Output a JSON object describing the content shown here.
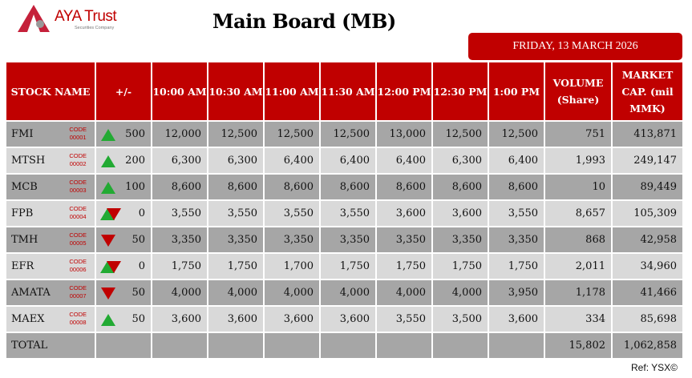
{
  "logo": {
    "name": "AYA Trust",
    "subtitle": "Securities Company"
  },
  "title": "Main Board (MB)",
  "date": "FRIDAY, 13 MARCH 2026",
  "colors": {
    "header": "#c00000",
    "row_dark": "#a6a6a6",
    "row_light": "#d9d9d9",
    "up": "#22aa33",
    "down": "#c00000"
  },
  "columns": [
    "STOCK NAME",
    "+/-",
    "10:00 AM",
    "10:30 AM",
    "11:00 AM",
    "11:30 AM",
    "12:00 PM",
    "12:30 PM",
    "1:00 PM",
    "VOLUME (Share)",
    "MARKET CAP. (mil MMK)"
  ],
  "rows": [
    {
      "name": "FMI",
      "code_label": "CODE",
      "code": "00001",
      "trend": "up",
      "change": "500",
      "prices": [
        "12,000",
        "12,500",
        "12,500",
        "12,500",
        "13,000",
        "12,500",
        "12,500"
      ],
      "volume": "751",
      "market_cap": "413,871"
    },
    {
      "name": "MTSH",
      "code_label": "CODE",
      "code": "00002",
      "trend": "up",
      "change": "200",
      "prices": [
        "6,300",
        "6,300",
        "6,400",
        "6,400",
        "6,400",
        "6,300",
        "6,400"
      ],
      "volume": "1,993",
      "market_cap": "249,147"
    },
    {
      "name": "MCB",
      "code_label": "CODE",
      "code": "00003",
      "trend": "up",
      "change": "100",
      "prices": [
        "8,600",
        "8,600",
        "8,600",
        "8,600",
        "8,600",
        "8,600",
        "8,600"
      ],
      "volume": "10",
      "market_cap": "89,449"
    },
    {
      "name": "FPB",
      "code_label": "CODE",
      "code": "00004",
      "trend": "unchanged",
      "change": "0",
      "prices": [
        "3,550",
        "3,550",
        "3,550",
        "3,550",
        "3,600",
        "3,600",
        "3,550"
      ],
      "volume": "8,657",
      "market_cap": "105,309"
    },
    {
      "name": "TMH",
      "code_label": "CODE",
      "code": "00005",
      "trend": "down",
      "change": "50",
      "prices": [
        "3,350",
        "3,350",
        "3,350",
        "3,350",
        "3,350",
        "3,350",
        "3,350"
      ],
      "volume": "868",
      "market_cap": "42,958"
    },
    {
      "name": "EFR",
      "code_label": "CODE",
      "code": "00006",
      "trend": "unchanged",
      "change": "0",
      "prices": [
        "1,750",
        "1,750",
        "1,700",
        "1,750",
        "1,750",
        "1,750",
        "1,750"
      ],
      "volume": "2,011",
      "market_cap": "34,960"
    },
    {
      "name": "AMATA",
      "code_label": "CODE",
      "code": "00007",
      "trend": "down",
      "change": "50",
      "prices": [
        "4,000",
        "4,000",
        "4,000",
        "4,000",
        "4,000",
        "4,000",
        "3,950"
      ],
      "volume": "1,178",
      "market_cap": "41,466"
    },
    {
      "name": "MAEX",
      "code_label": "CODE",
      "code": "00008",
      "trend": "up",
      "change": "50",
      "prices": [
        "3,600",
        "3,600",
        "3,600",
        "3,600",
        "3,550",
        "3,500",
        "3,600"
      ],
      "volume": "334",
      "market_cap": "85,698"
    }
  ],
  "total": {
    "label": "TOTAL",
    "volume": "15,802",
    "market_cap": "1,062,858"
  },
  "ref": "Ref: YSX©"
}
